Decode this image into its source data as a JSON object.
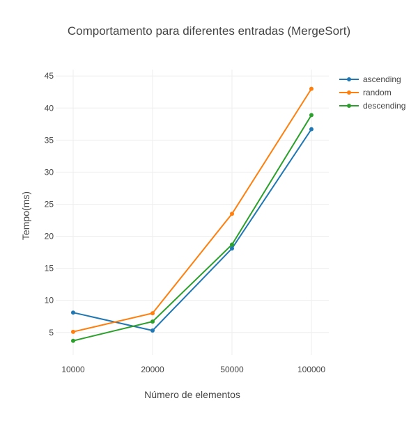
{
  "chart_data": {
    "type": "line",
    "title": "Comportamento para diferentes entradas (MergeSort)",
    "xlabel": "Número de elementos",
    "ylabel": "Tempo(ms)",
    "categories": [
      "10000",
      "20000",
      "50000",
      "100000"
    ],
    "ylim": [
      1.5,
      46
    ],
    "yticks": [
      5,
      10,
      15,
      20,
      25,
      30,
      35,
      40,
      45
    ],
    "grid": true,
    "legend_position": "top-right",
    "series": [
      {
        "name": "ascending",
        "color": "#1f77b4",
        "values": [
          8.1,
          5.3,
          18.1,
          36.7
        ]
      },
      {
        "name": "random",
        "color": "#ff7f0e",
        "values": [
          5.1,
          8.0,
          23.5,
          43.0
        ]
      },
      {
        "name": "descending",
        "color": "#2ca02c",
        "values": [
          3.7,
          6.7,
          18.7,
          38.9
        ]
      }
    ]
  }
}
